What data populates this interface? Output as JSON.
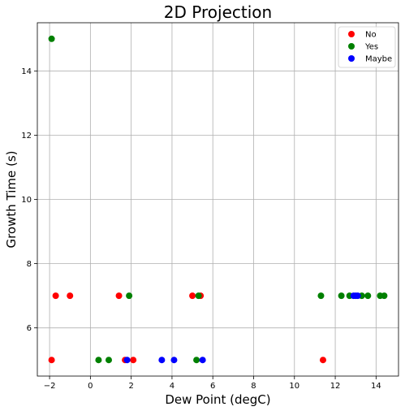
{
  "chart_data": {
    "type": "scatter",
    "title": "2D Projection",
    "xlabel": "Dew Point (degC)",
    "ylabel": "Growth Time (s)",
    "xlim": [
      -2.6,
      15.1
    ],
    "ylim": [
      4.5,
      15.5
    ],
    "xticks": [
      -2,
      0,
      2,
      4,
      6,
      8,
      10,
      12,
      14
    ],
    "yticks": [
      6,
      8,
      10,
      12,
      14
    ],
    "xtick_labels": [
      "−2",
      "0",
      "2",
      "4",
      "6",
      "8",
      "10",
      "12",
      "14"
    ],
    "ytick_labels": [
      "6",
      "8",
      "10",
      "12",
      "14"
    ],
    "grid": true,
    "legend_position": "top-right",
    "series": [
      {
        "name": "No",
        "color": "#ff0000",
        "points": [
          {
            "x": -1.9,
            "y": 5.0
          },
          {
            "x": -1.7,
            "y": 7.0
          },
          {
            "x": -1.0,
            "y": 7.0
          },
          {
            "x": 1.4,
            "y": 7.0
          },
          {
            "x": 1.7,
            "y": 5.0
          },
          {
            "x": 2.1,
            "y": 5.0
          },
          {
            "x": 5.0,
            "y": 7.0
          },
          {
            "x": 5.4,
            "y": 7.0
          },
          {
            "x": 11.4,
            "y": 5.0
          }
        ]
      },
      {
        "name": "Yes",
        "color": "#008000",
        "points": [
          {
            "x": -1.9,
            "y": 15.0
          },
          {
            "x": 0.4,
            "y": 5.0
          },
          {
            "x": 0.9,
            "y": 5.0
          },
          {
            "x": 1.9,
            "y": 7.0
          },
          {
            "x": 5.2,
            "y": 5.0
          },
          {
            "x": 5.3,
            "y": 7.0
          },
          {
            "x": 11.3,
            "y": 7.0
          },
          {
            "x": 12.3,
            "y": 7.0
          },
          {
            "x": 12.7,
            "y": 7.0
          },
          {
            "x": 13.3,
            "y": 7.0
          },
          {
            "x": 13.6,
            "y": 7.0
          },
          {
            "x": 14.2,
            "y": 7.0
          },
          {
            "x": 14.4,
            "y": 7.0
          }
        ]
      },
      {
        "name": "Maybe",
        "color": "#0000ff",
        "points": [
          {
            "x": 1.8,
            "y": 5.0
          },
          {
            "x": 3.5,
            "y": 5.0
          },
          {
            "x": 4.1,
            "y": 5.0
          },
          {
            "x": 5.5,
            "y": 5.0
          },
          {
            "x": 12.9,
            "y": 7.0
          },
          {
            "x": 13.0,
            "y": 7.0
          },
          {
            "x": 13.1,
            "y": 7.0
          }
        ]
      }
    ]
  }
}
